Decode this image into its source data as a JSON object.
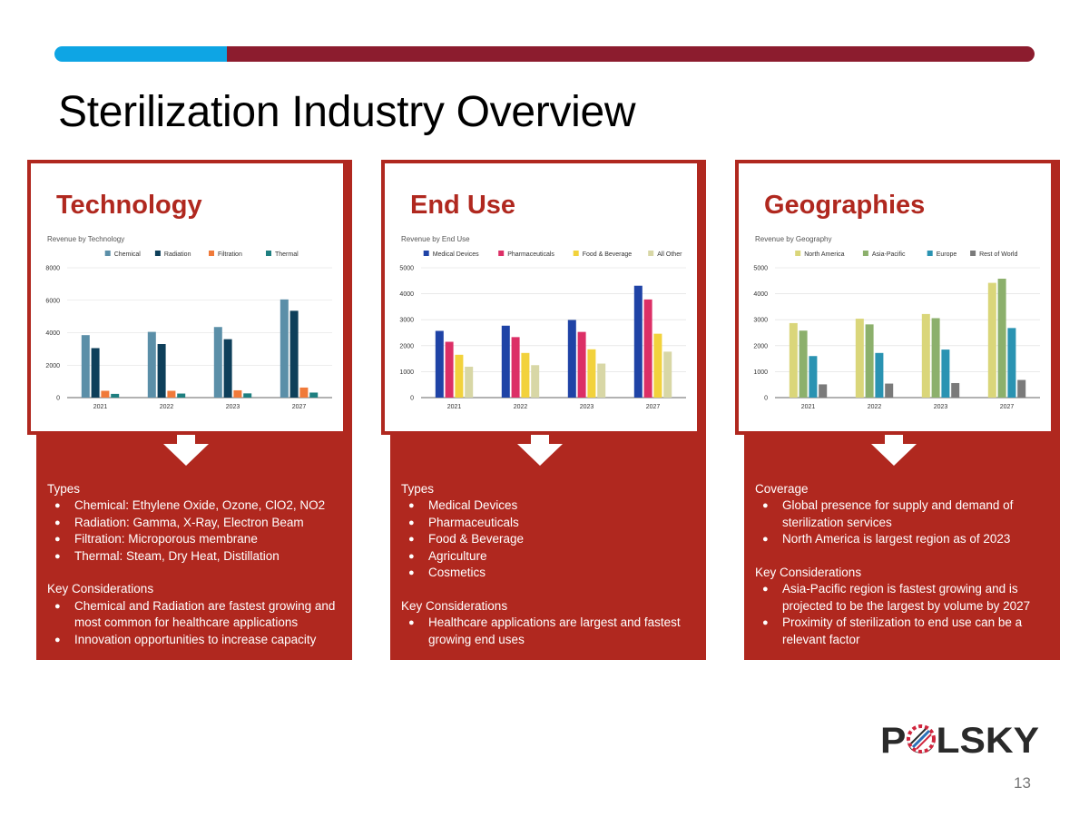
{
  "slide": {
    "title": "Sterilization Industry Overview",
    "page_number": "13",
    "logo_text": "POLSKY",
    "colors": {
      "panel": "#b0281f",
      "bar_blue": "#0ea5e4",
      "bar_red": "#8c1c2e"
    }
  },
  "panels": [
    {
      "title": "Technology",
      "desc": [
        {
          "heading": "Types",
          "items": [
            "Chemical: Ethylene Oxide, Ozone, ClO2, NO2",
            "Radiation: Gamma, X-Ray, Electron Beam",
            "Filtration: Microporous membrane",
            "Thermal: Steam, Dry Heat, Distillation"
          ]
        },
        {
          "heading": "Key Considerations",
          "items": [
            "Chemical and Radiation are fastest growing and most common for healthcare applications",
            "Innovation opportunities to increase capacity"
          ]
        }
      ]
    },
    {
      "title": "End Use",
      "desc": [
        {
          "heading": "Types",
          "items": [
            "Medical Devices",
            "Pharmaceuticals",
            "Food & Beverage",
            "Agriculture",
            "Cosmetics"
          ]
        },
        {
          "heading": "Key Considerations",
          "items": [
            "Healthcare applications are largest and fastest growing end uses"
          ]
        }
      ]
    },
    {
      "title": "Geographies",
      "desc": [
        {
          "heading": "Coverage",
          "items": [
            "Global presence for supply and demand of sterilization services",
            "North America is largest region as of 2023"
          ]
        },
        {
          "heading": "Key Considerations",
          "items": [
            "Asia-Pacific region is fastest growing and is projected to be the largest by volume by 2027",
            "Proximity of sterilization to end use can be a relevant factor"
          ]
        }
      ]
    }
  ],
  "chart_data": [
    {
      "type": "bar",
      "title": "Revenue by Technology",
      "categories": [
        "2021",
        "2022",
        "2023",
        "2027"
      ],
      "ylim": [
        0,
        8000
      ],
      "yticks": [
        0,
        2000,
        4000,
        6000,
        8000
      ],
      "grid": true,
      "legend": "top",
      "series": [
        {
          "name": "Chemical",
          "color": "#5b8fa8",
          "values": [
            3850,
            4050,
            4350,
            6050
          ]
        },
        {
          "name": "Radiation",
          "color": "#0e3f5a",
          "values": [
            3050,
            3300,
            3600,
            5350
          ]
        },
        {
          "name": "Filtration",
          "color": "#f07a3a",
          "values": [
            420,
            420,
            450,
            620
          ]
        },
        {
          "name": "Thermal",
          "color": "#1e7f80",
          "values": [
            230,
            250,
            260,
            310
          ]
        }
      ]
    },
    {
      "type": "bar",
      "title": "Revenue by End Use",
      "categories": [
        "2021",
        "2022",
        "2023",
        "2027"
      ],
      "ylim": [
        0,
        5000
      ],
      "yticks": [
        0,
        1000,
        2000,
        3000,
        4000,
        5000
      ],
      "grid": true,
      "legend": "top",
      "series": [
        {
          "name": "Medical Devices",
          "color": "#1f43a6",
          "values": [
            2570,
            2770,
            2990,
            4310
          ]
        },
        {
          "name": "Pharmaceuticals",
          "color": "#dc2f66",
          "values": [
            2150,
            2330,
            2530,
            3780
          ]
        },
        {
          "name": "Food & Beverage",
          "color": "#f2d23c",
          "values": [
            1650,
            1720,
            1860,
            2460
          ]
        },
        {
          "name": "All Other",
          "color": "#d8d7a6",
          "values": [
            1190,
            1250,
            1310,
            1770
          ]
        }
      ]
    },
    {
      "type": "bar",
      "title": "Revenue by Geography",
      "categories": [
        "2021",
        "2022",
        "2023",
        "2027"
      ],
      "ylim": [
        0,
        5000
      ],
      "yticks": [
        0,
        1000,
        2000,
        3000,
        4000,
        5000
      ],
      "grid": true,
      "legend": "top",
      "series": [
        {
          "name": "North America",
          "color": "#dad67a",
          "values": [
            2870,
            3040,
            3220,
            4420
          ]
        },
        {
          "name": "Asia-Pacific",
          "color": "#8cb06c",
          "values": [
            2580,
            2820,
            3060,
            4580
          ]
        },
        {
          "name": "Europe",
          "color": "#2a93b2",
          "values": [
            1600,
            1720,
            1850,
            2680
          ]
        },
        {
          "name": "Rest of World",
          "color": "#7a7a7a",
          "values": [
            510,
            540,
            560,
            680
          ]
        }
      ]
    }
  ]
}
